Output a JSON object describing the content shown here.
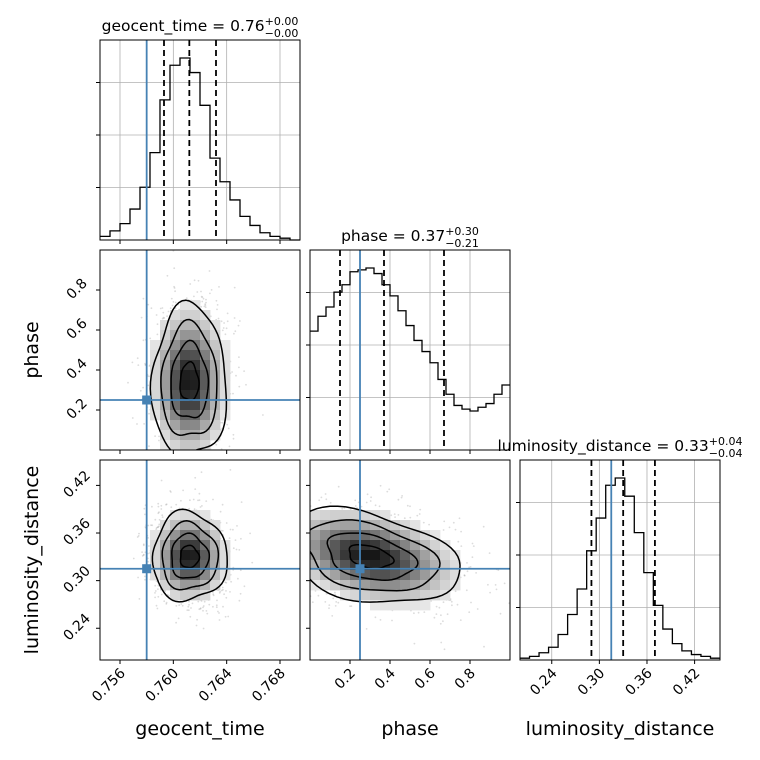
{
  "chart_data": {
    "type": "corner",
    "parameters": [
      "geocent_time",
      "phase",
      "luminosity_distance"
    ],
    "truths": [
      0.758,
      0.25,
      0.315
    ],
    "titles": [
      {
        "name": "geocent_time",
        "value": "0.76",
        "plus": "+0.00",
        "minus": "−0.00"
      },
      {
        "name": "phase",
        "value": "0.37",
        "plus": "+0.30",
        "minus": "−0.21"
      },
      {
        "name": "luminosity_distance",
        "value": "0.33",
        "plus": "+0.04",
        "minus": "−0.04"
      }
    ],
    "ranges": [
      [
        0.7545,
        0.7695
      ],
      [
        0.0,
        1.0
      ],
      [
        0.2,
        0.452
      ]
    ],
    "ticks": [
      {
        "values": [
          0.756,
          0.76,
          0.764,
          0.768
        ],
        "labels": [
          "0.756",
          "0.760",
          "0.764",
          "0.768"
        ]
      },
      {
        "values": [
          0.2,
          0.4,
          0.6,
          0.8
        ],
        "labels": [
          "0.2",
          "0.4",
          "0.6",
          "0.8"
        ]
      },
      {
        "values": [
          0.24,
          0.3,
          0.36,
          0.42
        ],
        "labels": [
          "0.24",
          "0.30",
          "0.36",
          "0.42"
        ]
      }
    ],
    "quantiles": [
      [
        0.7593,
        0.7612,
        0.7632
      ],
      [
        0.15,
        0.37,
        0.67
      ],
      [
        0.29,
        0.33,
        0.37
      ]
    ],
    "histograms": [
      {
        "name": "geocent_time",
        "values": [
          0.02,
          0.05,
          0.09,
          0.17,
          0.29,
          0.48,
          0.77,
          0.96,
          1.0,
          0.92,
          0.74,
          0.45,
          0.32,
          0.22,
          0.13,
          0.08,
          0.04,
          0.02,
          0.01,
          0.0
        ]
      },
      {
        "name": "phase",
        "values": [
          0.64,
          0.72,
          0.77,
          0.85,
          0.89,
          0.96,
          0.97,
          0.98,
          0.95,
          0.89,
          0.83,
          0.75,
          0.67,
          0.59,
          0.53,
          0.47,
          0.38,
          0.3,
          0.24,
          0.22,
          0.21,
          0.23,
          0.25,
          0.3,
          0.35
        ]
      },
      {
        "name": "luminosity_distance",
        "values": [
          0.01,
          0.02,
          0.04,
          0.07,
          0.14,
          0.25,
          0.39,
          0.6,
          0.78,
          0.96,
          1.0,
          0.9,
          0.7,
          0.48,
          0.3,
          0.17,
          0.09,
          0.05,
          0.03,
          0.02,
          0.01
        ]
      }
    ],
    "joints": [
      {
        "x_param": "geocent_time",
        "y_param": "phase",
        "center": [
          0.7612,
          0.34
        ],
        "sigma": [
          0.0014,
          0.19
        ]
      },
      {
        "x_param": "geocent_time",
        "y_param": "luminosity_distance",
        "center": [
          0.7612,
          0.33
        ],
        "sigma": [
          0.0014,
          0.028
        ]
      },
      {
        "x_param": "phase",
        "y_param": "luminosity_distance",
        "center": [
          0.3,
          0.33
        ],
        "sigma": [
          0.22,
          0.028
        ],
        "tilt": -0.06
      }
    ],
    "xlabels": [
      "geocent_time",
      "phase",
      "luminosity_distance"
    ],
    "ylabels": [
      "",
      "phase",
      "luminosity_distance"
    ],
    "grid": true,
    "truth_color": "#4682b4",
    "line_color": "#000000"
  }
}
